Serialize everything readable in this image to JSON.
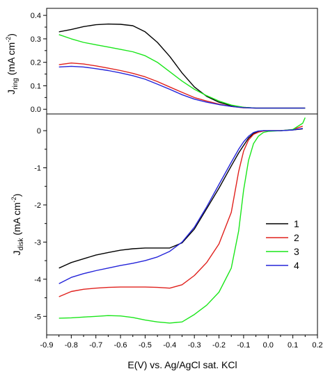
{
  "chart_data": [
    {
      "type": "line",
      "panel": "ring",
      "ylabel": "J_ring (mA cm^-2)",
      "ylabel_parts": {
        "main": "J",
        "sub": "ring",
        "unit": "(mA cm",
        "sup": "-2",
        "close": ")"
      },
      "xlim": [
        -0.9,
        0.2
      ],
      "ylim": [
        -0.02,
        0.43
      ],
      "yticks": [
        0.0,
        0.1,
        0.2,
        0.3,
        0.4
      ],
      "ytick_labels": [
        "0.0",
        "0.1",
        "0.2",
        "0.3",
        "0.4"
      ],
      "series": [
        {
          "id": "1",
          "color": "#000000",
          "x": [
            -0.85,
            -0.8,
            -0.75,
            -0.7,
            -0.65,
            -0.6,
            -0.55,
            -0.5,
            -0.45,
            -0.4,
            -0.35,
            -0.3,
            -0.25,
            -0.2,
            -0.15,
            -0.1,
            -0.05,
            0.0,
            0.05,
            0.1,
            0.15
          ],
          "y": [
            0.33,
            0.34,
            0.352,
            0.36,
            0.363,
            0.362,
            0.356,
            0.33,
            0.285,
            0.225,
            0.155,
            0.095,
            0.055,
            0.03,
            0.015,
            0.008,
            0.005,
            0.005,
            0.005,
            0.005,
            0.005
          ]
        },
        {
          "id": "2",
          "color": "#e0201c",
          "x": [
            -0.85,
            -0.8,
            -0.75,
            -0.7,
            -0.65,
            -0.6,
            -0.55,
            -0.5,
            -0.45,
            -0.4,
            -0.35,
            -0.3,
            -0.25,
            -0.2,
            -0.15,
            -0.1,
            -0.05,
            0.0,
            0.05,
            0.1,
            0.15
          ],
          "y": [
            0.19,
            0.197,
            0.193,
            0.185,
            0.175,
            0.165,
            0.153,
            0.138,
            0.118,
            0.095,
            0.072,
            0.05,
            0.035,
            0.022,
            0.012,
            0.006,
            0.005,
            0.005,
            0.005,
            0.005,
            0.005
          ]
        },
        {
          "id": "3",
          "color": "#19e619",
          "x": [
            -0.85,
            -0.8,
            -0.75,
            -0.7,
            -0.65,
            -0.6,
            -0.55,
            -0.5,
            -0.45,
            -0.4,
            -0.35,
            -0.3,
            -0.25,
            -0.2,
            -0.15,
            -0.1,
            -0.05,
            0.0,
            0.05,
            0.1,
            0.15
          ],
          "y": [
            0.318,
            0.3,
            0.285,
            0.275,
            0.265,
            0.255,
            0.245,
            0.228,
            0.2,
            0.16,
            0.12,
            0.085,
            0.058,
            0.035,
            0.018,
            0.008,
            0.005,
            0.005,
            0.005,
            0.005,
            0.005
          ]
        },
        {
          "id": "4",
          "color": "#2323d9",
          "x": [
            -0.85,
            -0.8,
            -0.75,
            -0.7,
            -0.65,
            -0.6,
            -0.55,
            -0.5,
            -0.45,
            -0.4,
            -0.35,
            -0.3,
            -0.25,
            -0.2,
            -0.15,
            -0.1,
            -0.05,
            0.0,
            0.05,
            0.1,
            0.15
          ],
          "y": [
            0.18,
            0.183,
            0.18,
            0.173,
            0.165,
            0.155,
            0.143,
            0.128,
            0.107,
            0.085,
            0.062,
            0.043,
            0.03,
            0.02,
            0.012,
            0.007,
            0.005,
            0.005,
            0.005,
            0.005,
            0.005
          ]
        }
      ]
    },
    {
      "type": "line",
      "panel": "disk",
      "ylabel": "J_disk (mA cm^-2)",
      "ylabel_parts": {
        "main": "J",
        "sub": "disk",
        "unit": "(mA cm",
        "sup": "-2",
        "close": ")"
      },
      "xlabel": "E(V) vs. Ag/AgCl sat. KCl",
      "xlim": [
        -0.9,
        0.2
      ],
      "ylim": [
        -5.5,
        0.45
      ],
      "xticks": [
        -0.9,
        -0.8,
        -0.7,
        -0.6,
        -0.5,
        -0.4,
        -0.3,
        -0.2,
        -0.1,
        0.0,
        0.1,
        0.2
      ],
      "xtick_labels": [
        "-0.9",
        "-0.8",
        "-0.7",
        "-0.6",
        "-0.5",
        "-0.4",
        "-0.3",
        "-0.2",
        "-0.1",
        "0.0",
        "0.1",
        "0.2"
      ],
      "yticks": [
        -5,
        -4,
        -3,
        -2,
        -1,
        0
      ],
      "ytick_labels": [
        "-5",
        "-4",
        "-3",
        "-2",
        "-1",
        "0"
      ],
      "legend": {
        "position": "right",
        "entries": [
          "1",
          "2",
          "3",
          "4"
        ]
      },
      "series": [
        {
          "id": "1",
          "color": "#000000",
          "x": [
            -0.85,
            -0.8,
            -0.75,
            -0.7,
            -0.65,
            -0.6,
            -0.55,
            -0.5,
            -0.45,
            -0.4,
            -0.35,
            -0.3,
            -0.25,
            -0.2,
            -0.15,
            -0.12,
            -0.1,
            -0.08,
            -0.06,
            -0.04,
            -0.02,
            0.0,
            0.05,
            0.1,
            0.14
          ],
          "y": [
            -3.7,
            -3.55,
            -3.45,
            -3.35,
            -3.28,
            -3.22,
            -3.18,
            -3.16,
            -3.16,
            -3.16,
            -3.02,
            -2.65,
            -2.1,
            -1.55,
            -0.95,
            -0.6,
            -0.4,
            -0.2,
            -0.08,
            -0.02,
            0.0,
            0.0,
            0.0,
            0.02,
            0.05
          ]
        },
        {
          "id": "2",
          "color": "#e0201c",
          "x": [
            -0.85,
            -0.8,
            -0.75,
            -0.7,
            -0.65,
            -0.6,
            -0.55,
            -0.5,
            -0.45,
            -0.4,
            -0.35,
            -0.3,
            -0.25,
            -0.2,
            -0.15,
            -0.12,
            -0.1,
            -0.08,
            -0.06,
            -0.04,
            -0.02,
            0.0,
            0.05,
            0.1,
            0.14
          ],
          "y": [
            -4.47,
            -4.33,
            -4.27,
            -4.24,
            -4.22,
            -4.21,
            -4.21,
            -4.21,
            -4.22,
            -4.24,
            -4.15,
            -3.9,
            -3.55,
            -3.05,
            -2.2,
            -1.1,
            -0.55,
            -0.25,
            -0.1,
            -0.04,
            -0.01,
            0.0,
            0.0,
            0.03,
            0.12
          ]
        },
        {
          "id": "3",
          "color": "#19e619",
          "x": [
            -0.85,
            -0.8,
            -0.75,
            -0.7,
            -0.65,
            -0.6,
            -0.55,
            -0.5,
            -0.45,
            -0.4,
            -0.35,
            -0.3,
            -0.25,
            -0.2,
            -0.15,
            -0.12,
            -0.1,
            -0.08,
            -0.06,
            -0.04,
            -0.02,
            0.0,
            0.05,
            0.1,
            0.14,
            0.15
          ],
          "y": [
            -5.05,
            -5.04,
            -5.02,
            -5.0,
            -4.98,
            -4.99,
            -5.03,
            -5.1,
            -5.15,
            -5.18,
            -5.15,
            -4.95,
            -4.7,
            -4.35,
            -3.7,
            -2.7,
            -1.6,
            -0.8,
            -0.35,
            -0.15,
            -0.05,
            -0.02,
            0.0,
            0.03,
            0.2,
            0.35
          ]
        },
        {
          "id": "4",
          "color": "#2323d9",
          "x": [
            -0.85,
            -0.8,
            -0.75,
            -0.7,
            -0.65,
            -0.6,
            -0.55,
            -0.5,
            -0.45,
            -0.4,
            -0.35,
            -0.3,
            -0.25,
            -0.2,
            -0.15,
            -0.12,
            -0.1,
            -0.08,
            -0.06,
            -0.04,
            -0.02,
            0.0,
            0.05,
            0.1,
            0.14
          ],
          "y": [
            -4.12,
            -3.95,
            -3.85,
            -3.77,
            -3.7,
            -3.63,
            -3.57,
            -3.5,
            -3.4,
            -3.25,
            -3.0,
            -2.6,
            -2.05,
            -1.45,
            -0.85,
            -0.5,
            -0.3,
            -0.15,
            -0.05,
            -0.01,
            0.0,
            0.0,
            0.0,
            0.02,
            0.06
          ]
        }
      ]
    }
  ]
}
